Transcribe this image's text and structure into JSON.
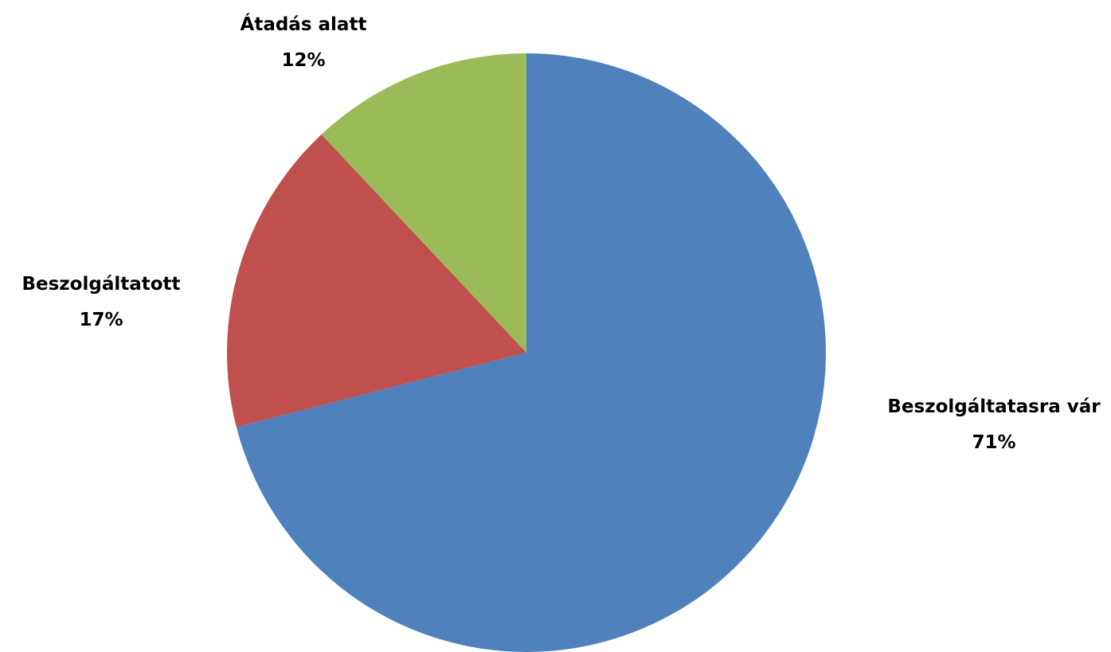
{
  "chart_data": {
    "type": "pie",
    "title": "",
    "legend": "none",
    "start_angle_deg": 0,
    "direction": "clockwise",
    "slices": [
      {
        "label": "Beszolgáltatasra vár",
        "value": 71,
        "value_label": "71%",
        "color": "#4F81BD"
      },
      {
        "label": "Beszolgáltatott",
        "value": 17,
        "value_label": "17%",
        "color": "#C0504D"
      },
      {
        "label": "Átadás alatt",
        "value": 12,
        "value_label": "12%",
        "color": "#9BBB59"
      }
    ]
  }
}
